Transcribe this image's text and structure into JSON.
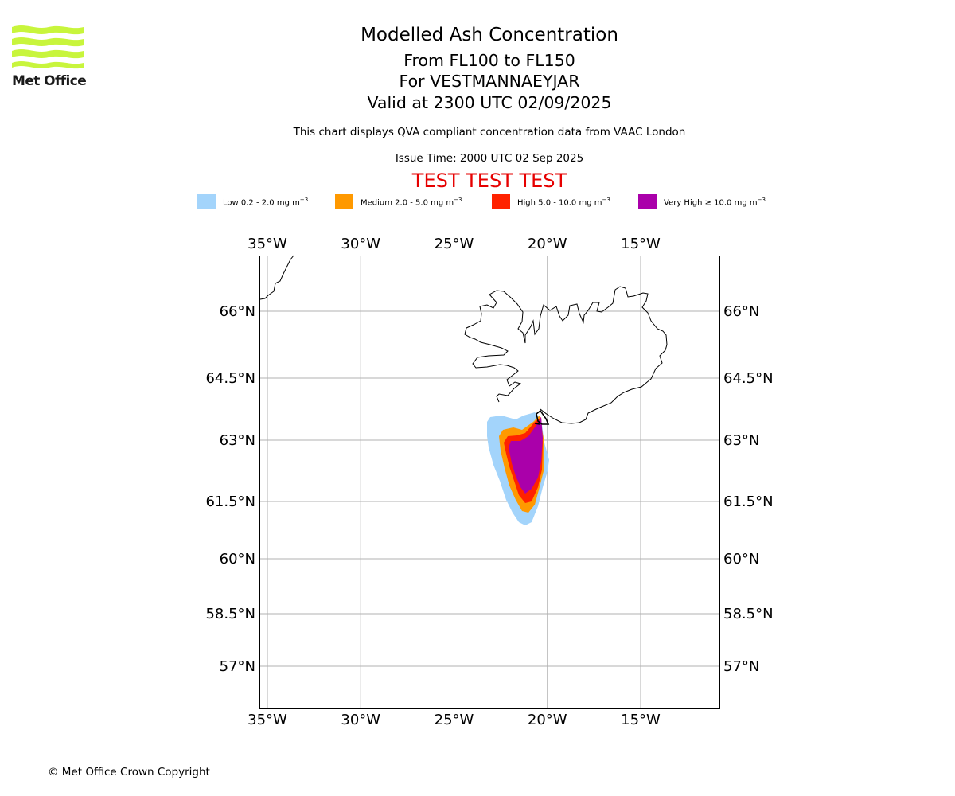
{
  "header": {
    "logo_text": "Met Office",
    "title": "Modelled Ash Concentration",
    "levels": "From FL100 to FL150",
    "volcano": "For VESTMANNAEYJAR",
    "valid": "Valid at 2300 UTC 02/09/2025",
    "description": "This chart displays QVA compliant concentration data from VAAC London",
    "issue_time": "Issue Time: 2000 UTC 02 Sep 2025",
    "test_banner": "TEST TEST TEST",
    "test_banner_color": "#e60000"
  },
  "legend": [
    {
      "label": "Low 0.2 - 2.0 mg m",
      "unit_exp": "−3",
      "color": "#a3d4fb"
    },
    {
      "label": "Medium 2.0 - 5.0 mg m",
      "unit_exp": "−3",
      "color": "#ff9900"
    },
    {
      "label": "High 5.0 - 10.0 mg m",
      "unit_exp": "−3",
      "color": "#ff2200"
    },
    {
      "label": "Very High  ≥  10.0 mg m",
      "unit_exp": "−3",
      "color": "#aa00aa"
    }
  ],
  "map": {
    "lon_range": [
      -35.4,
      -10.7
    ],
    "lat_range": [
      56.0,
      66.7
    ],
    "lon_ticks": [
      {
        "value": -35,
        "label": "35°W"
      },
      {
        "value": -30,
        "label": "30°W"
      },
      {
        "value": -25,
        "label": "25°W"
      },
      {
        "value": -20,
        "label": "20°W"
      },
      {
        "value": -15,
        "label": "15°W"
      }
    ],
    "lat_ticks": [
      {
        "value": 66,
        "label": "66°N"
      },
      {
        "value": 64.5,
        "label": "64.5°N"
      },
      {
        "value": 63,
        "label": "63°N"
      },
      {
        "value": 61.5,
        "label": "61.5°N"
      },
      {
        "value": 60,
        "label": "60°N"
      },
      {
        "value": 58.5,
        "label": "58.5°N"
      },
      {
        "value": 57,
        "label": "57°N"
      }
    ],
    "grid": true,
    "grid_color": "#b0b0b0"
  },
  "footer": {
    "copyright": "© Met Office Crown Copyright"
  }
}
